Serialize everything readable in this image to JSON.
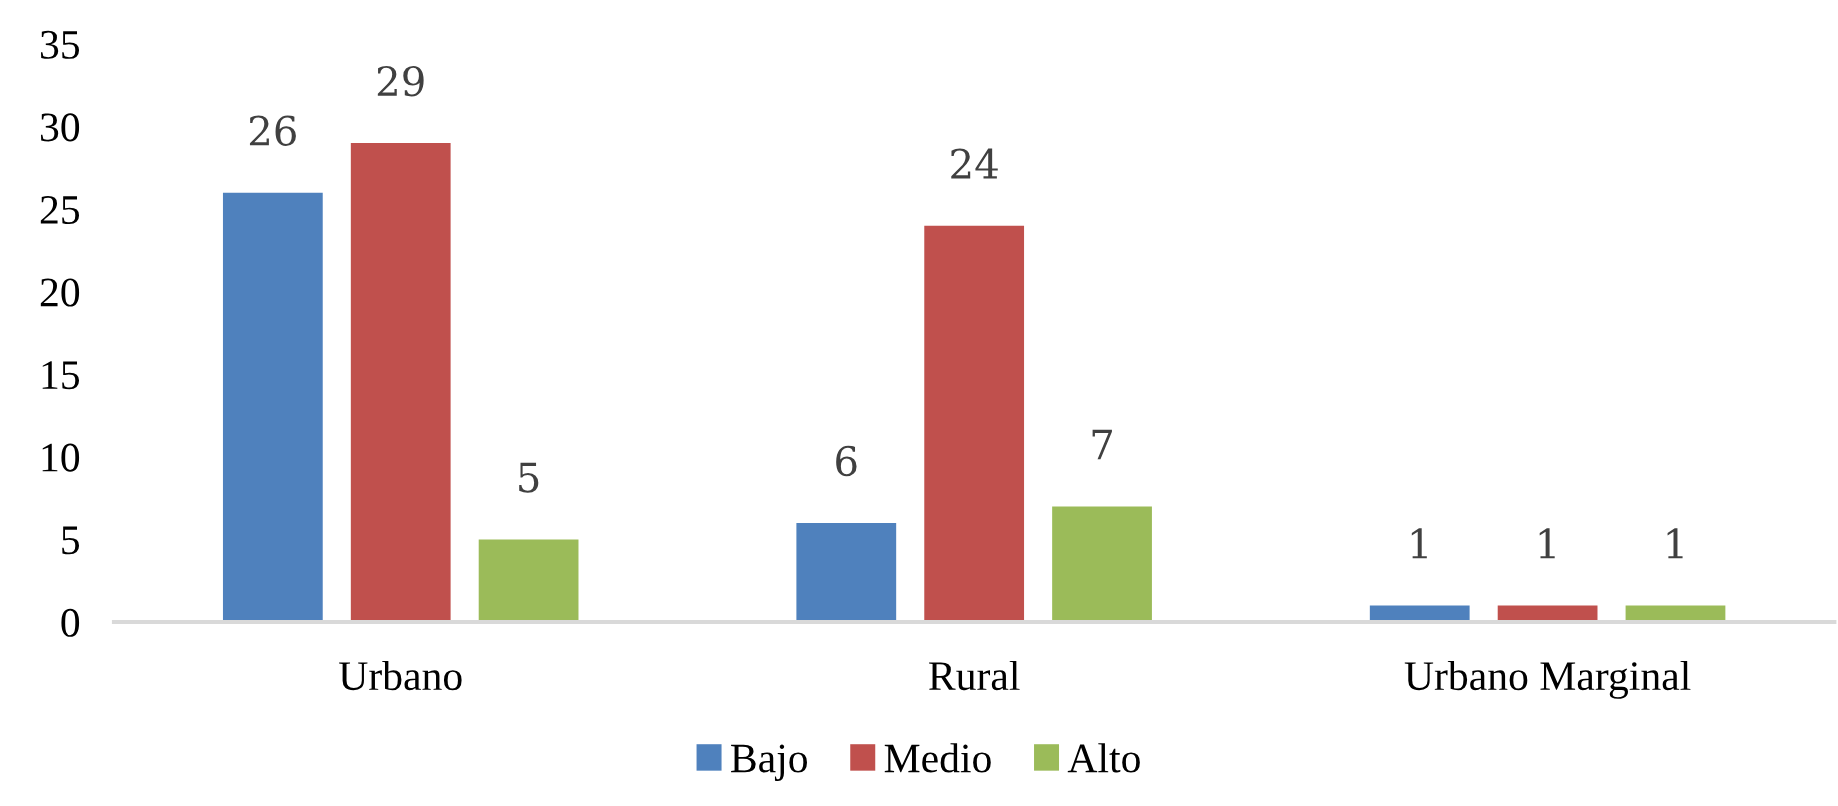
{
  "chart_data": {
    "type": "bar",
    "categories": [
      "Urbano",
      "Rural",
      "Urbano Marginal"
    ],
    "series": [
      {
        "name": "Bajo",
        "color": "#4f81bd",
        "values": [
          26,
          6,
          1
        ]
      },
      {
        "name": "Medio",
        "color": "#c0504d",
        "values": [
          29,
          24,
          1
        ]
      },
      {
        "name": "Alto",
        "color": "#9bbb59",
        "values": [
          5,
          7,
          1
        ]
      }
    ],
    "ylim": [
      0,
      35
    ],
    "yticks": [
      0,
      5,
      10,
      15,
      20,
      25,
      30,
      35
    ],
    "data_labels": true,
    "grid": false,
    "legend": "bottom"
  }
}
